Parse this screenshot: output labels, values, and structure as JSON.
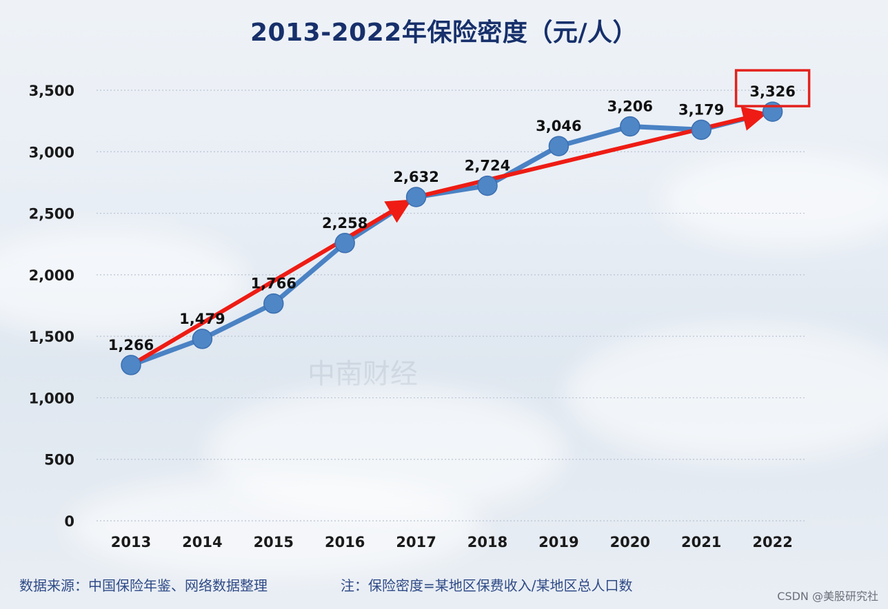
{
  "chart_data": {
    "type": "line",
    "title": "2013-2022年保险密度（元/人）",
    "categories": [
      "2013",
      "2014",
      "2015",
      "2016",
      "2017",
      "2018",
      "2019",
      "2020",
      "2021",
      "2022"
    ],
    "series": [
      {
        "values": [
          1266,
          1479,
          1766,
          2258,
          2632,
          2724,
          3046,
          3206,
          3179,
          3326
        ],
        "labels": [
          "1,266",
          "1,479",
          "1,766",
          "2,258",
          "2,632",
          "2,724",
          "3,046",
          "3,206",
          "3,179",
          "3,326"
        ]
      }
    ],
    "yticks": [
      0,
      500,
      1000,
      1500,
      2000,
      2500,
      3000,
      3500
    ],
    "ytick_labels": [
      "0",
      "500",
      "1,000",
      "1,500",
      "2,000",
      "2,500",
      "3,000",
      "3,500"
    ],
    "ylim": [
      0,
      3500
    ],
    "grid": true,
    "annotations": {
      "highlighted_point": "2022",
      "trend_arrows": [
        {
          "from": "2013",
          "to": "2017"
        },
        {
          "from": "2017",
          "to": "2022"
        }
      ]
    },
    "colors": {
      "line": "#4a82c4",
      "marker": "#4f86c6",
      "arrow": "#ee1c14",
      "highlight_box": "#e3221c",
      "text": "#111111",
      "axis_text": "#1a1a1a"
    }
  },
  "footer": {
    "source": "数据来源：中国保险年鉴、网络数据整理",
    "note": "注：保险密度=某地区保费收入/某地区总人口数",
    "credit": "CSDN @美股研究社"
  },
  "watermark": "中南财经"
}
